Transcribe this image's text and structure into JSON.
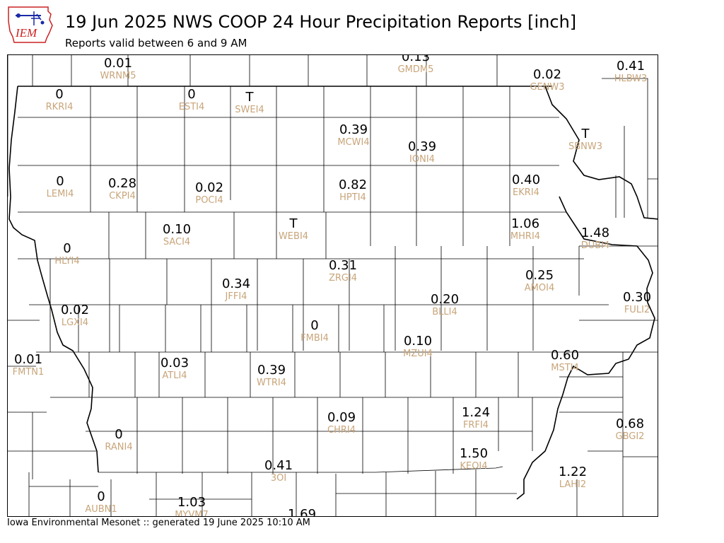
{
  "header": {
    "title": "19 Jun 2025 NWS COOP 24 Hour Precipitation Reports [inch]",
    "subtitle": "Reports valid between 6 and 9 AM",
    "logo_text": "IEM"
  },
  "footer": {
    "text": "Iowa Environmental Mesonet :: generated 19 June 2025 10:10 AM"
  },
  "colors": {
    "station_id": "#c8a57a",
    "value": "#000000",
    "logo_red": "#cc2222",
    "logo_blue": "#1a2aa6"
  },
  "stations": [
    {
      "value": "0.01",
      "id": "WRNM5"
    },
    {
      "value": "0.13",
      "id": "GMDM5"
    },
    {
      "value": "0.02",
      "id": "GENW3"
    },
    {
      "value": "0.41",
      "id": "HLBW3"
    },
    {
      "value": "0",
      "id": "RKRI4"
    },
    {
      "value": "0",
      "id": "ESTI4"
    },
    {
      "value": "T",
      "id": "SWEI4"
    },
    {
      "value": "0.39",
      "id": "MCWI4"
    },
    {
      "value": "0.39",
      "id": "IONI4"
    },
    {
      "value": "T",
      "id": "SBNW3"
    },
    {
      "value": "0",
      "id": "LEMI4"
    },
    {
      "value": "0.28",
      "id": "CKPI4"
    },
    {
      "value": "0.02",
      "id": "POCI4"
    },
    {
      "value": "0.82",
      "id": "HPTI4"
    },
    {
      "value": "0.40",
      "id": "EKRI4"
    },
    {
      "value": "0.10",
      "id": "SACI4"
    },
    {
      "value": "T",
      "id": "WEBI4"
    },
    {
      "value": "1.06",
      "id": "MHRI4"
    },
    {
      "value": "1.48",
      "id": "DUBI4"
    },
    {
      "value": "0",
      "id": "HLYI4"
    },
    {
      "value": "0.31",
      "id": "ZRGI4"
    },
    {
      "value": "0.34",
      "id": "JFFI4"
    },
    {
      "value": "0.25",
      "id": "AMOI4"
    },
    {
      "value": "0.20",
      "id": "BLLI4"
    },
    {
      "value": "0.30",
      "id": "FULI2"
    },
    {
      "value": "0.02",
      "id": "LGXI4"
    },
    {
      "value": "0",
      "id": "FMBI4"
    },
    {
      "value": "0.10",
      "id": "MZUI4"
    },
    {
      "value": "0.60",
      "id": "MSTI4"
    },
    {
      "value": "0.01",
      "id": "FMTN1"
    },
    {
      "value": "0.03",
      "id": "ATLI4"
    },
    {
      "value": "0.39",
      "id": "WTRI4"
    },
    {
      "value": "0.09",
      "id": "CHRI4"
    },
    {
      "value": "1.24",
      "id": "FRFI4"
    },
    {
      "value": "0.68",
      "id": "GBGI2"
    },
    {
      "value": "0",
      "id": "RANI4"
    },
    {
      "value": "1.50",
      "id": "KEOI4"
    },
    {
      "value": "0.41",
      "id": "3OI"
    },
    {
      "value": "1.22",
      "id": "LAHI2"
    },
    {
      "value": "0",
      "id": "AUBN1"
    },
    {
      "value": "1.03",
      "id": "MYVM7"
    },
    {
      "value": "1.69",
      "id": ""
    }
  ]
}
